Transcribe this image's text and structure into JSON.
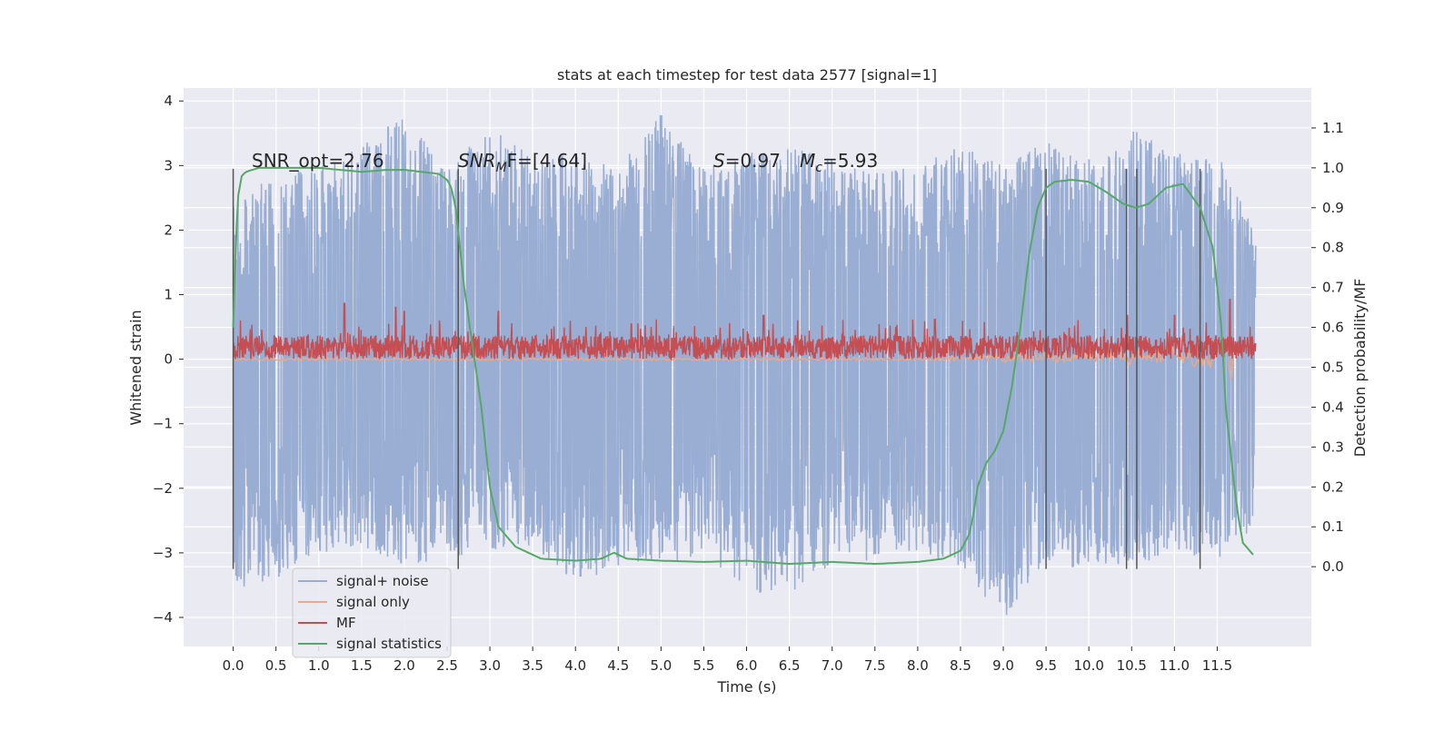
{
  "chart_data": {
    "type": "line",
    "title": "stats at each timestep for test data 2577 [signal=1]",
    "xlabel": "Time (s)",
    "ylabel": "Whitened strain",
    "y2label": "Detection probability/MF",
    "xlim": [
      -0.58,
      12.6
    ],
    "ylim": [
      -4.45,
      4.2
    ],
    "y2lim": [
      -0.2,
      1.2
    ],
    "x_ticks": [
      "0.0",
      "0.5",
      "1.0",
      "1.5",
      "2.0",
      "2.5",
      "3.0",
      "3.5",
      "4.0",
      "4.5",
      "5.0",
      "5.5",
      "6.0",
      "6.5",
      "7.0",
      "7.5",
      "8.0",
      "8.5",
      "9.0",
      "9.5",
      "10.0",
      "10.5",
      "11.0",
      "11.5"
    ],
    "y_ticks": [
      -4,
      -3,
      -2,
      -1,
      0,
      1,
      2,
      3,
      4
    ],
    "y_tick_labels": [
      "−4",
      "−3",
      "−2",
      "−1",
      "0",
      "1",
      "2",
      "3",
      "4"
    ],
    "y2_ticks": [
      "0.0",
      "0.1",
      "0.2",
      "0.3",
      "0.4",
      "0.5",
      "0.6",
      "0.7",
      "0.8",
      "0.9",
      "1.0",
      "1.1"
    ],
    "grid": true,
    "legend_position": "lower-left",
    "annotations": {
      "snr_opt": "SNR_opt=2.76",
      "snr_mf_main": "SNR",
      "snr_mf_sub": "M",
      "snr_mf_rest": "F=[4.64]",
      "s_label": "S",
      "s_value": "=0.97",
      "mc_main": "M",
      "mc_sub": "c",
      "mc_value": "=5.93"
    },
    "vertical_markers_s": [
      0.0,
      2.63,
      9.5,
      10.44,
      10.56,
      11.3
    ],
    "series": [
      {
        "name": "signal+ noise",
        "color": "#9aaed3",
        "axis": "left",
        "envelope": {
          "x": [
            0.0,
            0.5,
            1.0,
            1.5,
            2.0,
            2.5,
            3.0,
            3.5,
            4.0,
            4.5,
            5.0,
            5.5,
            6.0,
            6.5,
            7.0,
            7.5,
            8.0,
            8.5,
            9.0,
            9.5,
            10.0,
            10.5,
            11.0,
            11.5,
            11.95
          ],
          "upper": [
            2.4,
            2.9,
            3.0,
            3.3,
            3.8,
            2.9,
            3.7,
            3.1,
            3.2,
            3.0,
            3.8,
            3.0,
            3.2,
            3.3,
            3.1,
            2.9,
            3.0,
            3.3,
            3.0,
            3.4,
            3.1,
            3.6,
            3.2,
            3.2,
            2.0
          ],
          "lower": [
            -3.6,
            -3.4,
            -3.0,
            -2.9,
            -3.2,
            -3.1,
            -3.0,
            -2.9,
            -3.5,
            -3.2,
            -3.2,
            -3.0,
            -3.6,
            -3.7,
            -3.2,
            -3.1,
            -3.0,
            -3.2,
            -4.05,
            -3.1,
            -3.3,
            -3.3,
            -3.0,
            -3.1,
            -2.6
          ]
        }
      },
      {
        "name": "signal only",
        "color": "#e8a98c",
        "axis": "left",
        "x": [
          0.0,
          8.0,
          9.0,
          10.0,
          10.5,
          11.0,
          11.4,
          11.62,
          11.66,
          11.7
        ],
        "y": [
          0.0,
          0.0,
          0.01,
          0.05,
          0.03,
          0.1,
          -0.05,
          0.2,
          -0.3,
          0.0
        ]
      },
      {
        "name": "MF",
        "color": "#c44e52",
        "axis": "right",
        "band": {
          "low": 0.52,
          "high": 0.58
        },
        "peaks": [
          {
            "x": 0.0,
            "y": 0.56
          },
          {
            "x": 1.3,
            "y": 0.66
          },
          {
            "x": 1.9,
            "y": 0.65
          },
          {
            "x": 2.0,
            "y": 0.64
          },
          {
            "x": 3.1,
            "y": 0.64
          },
          {
            "x": 6.2,
            "y": 0.63
          },
          {
            "x": 8.2,
            "y": 0.62
          },
          {
            "x": 10.45,
            "y": 0.63
          },
          {
            "x": 11.0,
            "y": 0.63
          },
          {
            "x": 11.65,
            "y": 0.67
          }
        ]
      },
      {
        "name": "signal statistics",
        "color": "#55a868",
        "axis": "right",
        "x": [
          0.0,
          0.05,
          0.1,
          0.15,
          0.3,
          0.6,
          1.0,
          1.5,
          1.8,
          2.0,
          2.2,
          2.4,
          2.5,
          2.55,
          2.6,
          2.65,
          2.7,
          2.8,
          2.9,
          3.0,
          3.1,
          3.3,
          3.6,
          4.0,
          4.3,
          4.45,
          4.6,
          5.0,
          5.5,
          6.0,
          6.5,
          7.0,
          7.5,
          8.0,
          8.3,
          8.5,
          8.6,
          8.65,
          8.7,
          8.8,
          8.9,
          9.0,
          9.1,
          9.2,
          9.3,
          9.4,
          9.5,
          9.6,
          9.8,
          10.0,
          10.2,
          10.4,
          10.55,
          10.7,
          10.9,
          11.1,
          11.3,
          11.45,
          11.55,
          11.6,
          11.65,
          11.7,
          11.75,
          11.8,
          11.92
        ],
        "y": [
          0.6,
          0.92,
          0.98,
          0.99,
          1.0,
          1.0,
          1.0,
          0.99,
          0.995,
          0.995,
          0.99,
          0.985,
          0.97,
          0.95,
          0.9,
          0.8,
          0.7,
          0.55,
          0.4,
          0.2,
          0.1,
          0.05,
          0.02,
          0.015,
          0.02,
          0.035,
          0.02,
          0.015,
          0.012,
          0.015,
          0.007,
          0.012,
          0.007,
          0.012,
          0.02,
          0.04,
          0.08,
          0.13,
          0.2,
          0.26,
          0.29,
          0.34,
          0.45,
          0.6,
          0.78,
          0.9,
          0.95,
          0.965,
          0.97,
          0.965,
          0.94,
          0.91,
          0.9,
          0.91,
          0.95,
          0.96,
          0.9,
          0.8,
          0.6,
          0.4,
          0.3,
          0.2,
          0.12,
          0.06,
          0.03
        ]
      }
    ]
  }
}
